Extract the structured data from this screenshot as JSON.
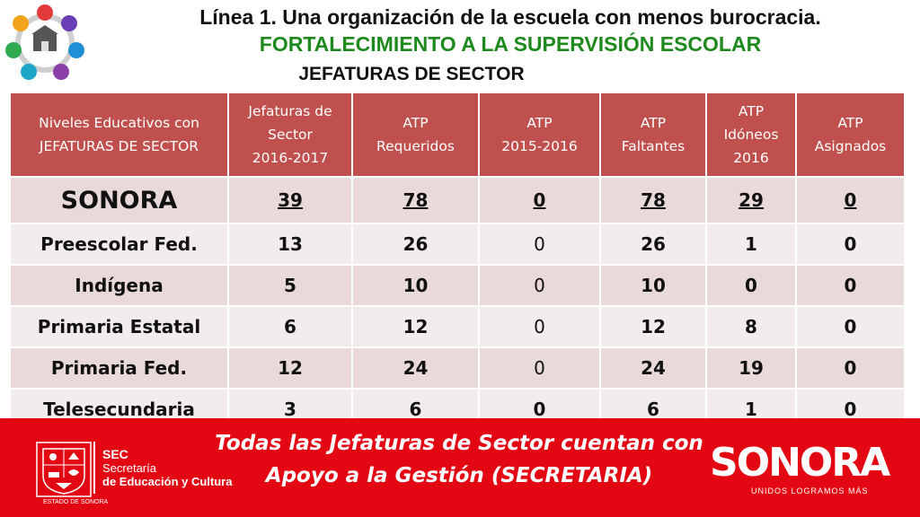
{
  "header": {
    "line1": "Línea 1. Una organización de la escuela con menos burocracia.",
    "line2": "FORTALECIMIENTO A LA SUPERVISIÓN ESCOLAR",
    "line3": "JEFATURAS DE SECTOR"
  },
  "table": {
    "columns": [
      "Niveles  Educativos con\nJEFATURAS DE SECTOR",
      "Jefaturas de\nSector\n2016-2017",
      "ATP\nRequeridos",
      "ATP\n2015-2016",
      "ATP\nFaltantes",
      "ATP\nIdóneos\n2016",
      "ATP\nAsignados"
    ],
    "total": {
      "label": "SONORA",
      "values": [
        "39",
        "78",
        "0",
        "78",
        "29",
        "0"
      ]
    },
    "rows": [
      {
        "label": "Preescolar Fed.",
        "values": [
          "13",
          "26",
          "0",
          "26",
          "1",
          "0"
        ]
      },
      {
        "label": "Indígena",
        "values": [
          "5",
          "10",
          "0",
          "10",
          "0",
          "0"
        ]
      },
      {
        "label": "Primaria Estatal",
        "values": [
          "6",
          "12",
          "0",
          "12",
          "8",
          "0"
        ]
      },
      {
        "label": "Primaria Fed.",
        "values": [
          "12",
          "24",
          "0",
          "24",
          "19",
          "0"
        ]
      },
      {
        "label": "Telesecundaria",
        "values": [
          "3",
          "6",
          "0",
          "6",
          "1",
          "0"
        ]
      }
    ]
  },
  "footer": {
    "sec": "SEC",
    "sec_line1": "Secretaría",
    "sec_line2": "de Educación y Cultura",
    "estado": "ESTADO DE SONORA",
    "message_line1": "Todas las Jefaturas de Sector cuentan con",
    "message_line2": "Apoyo a la Gestión (SECRETARIA)",
    "brand": "SONORA",
    "slogan": "UNIDOS LOGRAMOS MÁS"
  },
  "colors": {
    "header_fill": "#c0504d",
    "row_odd": "#e9d9d8",
    "row_even": "#f3ecec",
    "footer_band": "#e30613",
    "subtitle_green": "#1e8a1e"
  },
  "icons": [
    "school-program-wheel-icon",
    "estado-sonora-shield-icon"
  ]
}
